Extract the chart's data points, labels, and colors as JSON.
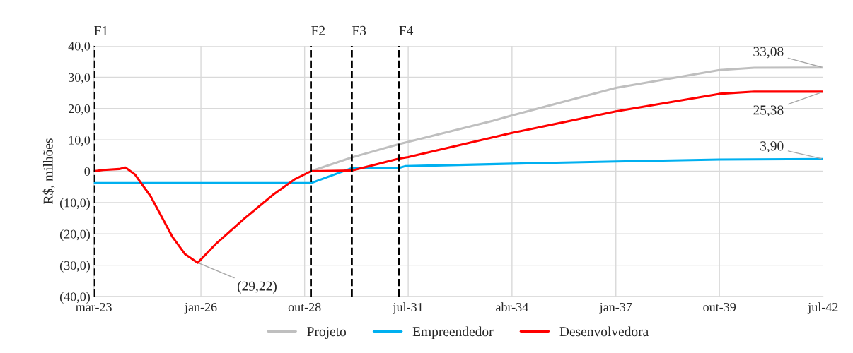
{
  "chart_data": {
    "type": "line",
    "ylabel": "R$, milhões",
    "xlim": [
      "2023-03",
      "2042-07"
    ],
    "xticks": [
      {
        "value": "2023-03",
        "label": "mar-23"
      },
      {
        "value": "2026-01",
        "label": "jan-26"
      },
      {
        "value": "2028-10",
        "label": "out-28"
      },
      {
        "value": "2031-07",
        "label": "jul-31"
      },
      {
        "value": "2034-04",
        "label": "abr-34"
      },
      {
        "value": "2037-01",
        "label": "jan-37"
      },
      {
        "value": "2039-10",
        "label": "out-39"
      },
      {
        "value": "2042-07",
        "label": "jul-42"
      }
    ],
    "ylim": [
      -40,
      40
    ],
    "yticks": [
      {
        "value": -40,
        "label": "(40,0)"
      },
      {
        "value": -30,
        "label": "(30,0)"
      },
      {
        "value": -20,
        "label": "(20,0)"
      },
      {
        "value": -10,
        "label": "(10,0)"
      },
      0,
      {
        "value": 10,
        "label": "10,0"
      },
      {
        "value": 20,
        "label": "20,0"
      },
      {
        "value": 30,
        "label": "30,0"
      },
      {
        "value": 40,
        "label": "40,0"
      }
    ],
    "grid": true,
    "legend": "bottom",
    "line_style": "solid",
    "marker": "none",
    "series": [
      {
        "name": "Projeto",
        "color": "#bfbfbf",
        "x": [
          "2028-12",
          "2030-01",
          "2031-04",
          "2033-10",
          "2034-04",
          "2037-01",
          "2039-10",
          "2040-09",
          "2042-07"
        ],
        "values": [
          0,
          4.4,
          8.6,
          16.1,
          17.8,
          26.6,
          32.3,
          33.0,
          33.08
        ]
      },
      {
        "name": "Empreendedor",
        "color": "#00b0f0",
        "x": [
          "2023-03",
          "2028-12",
          "2030-01",
          "2031-04",
          "2031-06",
          "2034-04",
          "2037-01",
          "2039-10",
          "2042-07"
        ],
        "values": [
          -3.8,
          -3.8,
          1.0,
          1.0,
          1.6,
          2.4,
          3.1,
          3.7,
          3.9
        ]
      },
      {
        "name": "Desenvolvedora",
        "color": "#ff0000",
        "x": [
          "2023-03",
          "2023-06",
          "2023-11",
          "2024-01",
          "2024-04",
          "2024-09",
          "2025-04",
          "2025-08",
          "2025-12",
          "2026-06",
          "2027-03",
          "2027-12",
          "2028-07",
          "2028-12",
          "2030-01",
          "2030-10",
          "2031-04",
          "2031-07",
          "2034-04",
          "2037-01",
          "2039-10",
          "2040-09",
          "2042-07"
        ],
        "values": [
          0,
          0.4,
          0.7,
          1.2,
          -1,
          -8,
          -21,
          -26.5,
          -29.22,
          -23,
          -15,
          -7.5,
          -2.5,
          0,
          0.2,
          2.5,
          4.0,
          4.5,
          12.2,
          19.1,
          24.7,
          25.4,
          25.38
        ]
      }
    ],
    "ref_lines": [
      {
        "axis": "x",
        "value": "2023-03",
        "label": "F1",
        "color": "#000000",
        "line_style": "dashed"
      },
      {
        "axis": "x",
        "value": "2028-12",
        "label": "F2",
        "color": "#000000",
        "line_style": "dashed"
      },
      {
        "axis": "x",
        "value": "2030-01",
        "label": "F3",
        "color": "#000000",
        "line_style": "dashed"
      },
      {
        "axis": "x",
        "value": "2031-04",
        "label": "F4",
        "color": "#000000",
        "line_style": "dashed"
      }
    ],
    "annotations": [
      {
        "text": "(29,22)",
        "x": "2025-12",
        "y": -29.22
      },
      {
        "text": "33,08",
        "x": "2042-07",
        "y": 33.08
      },
      {
        "text": "25,38",
        "x": "2042-07",
        "y": 25.38
      },
      {
        "text": "3,90",
        "x": "2042-07",
        "y": 3.9
      }
    ]
  }
}
